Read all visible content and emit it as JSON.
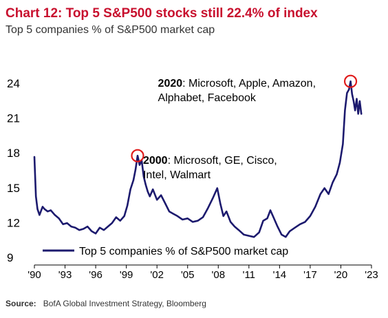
{
  "title": "Chart 12: Top 5 S&P500 stocks still 22.4% of index",
  "subtitle": "Top 5 companies % of S&P500 market cap",
  "source": {
    "label": "Source:",
    "text": "BofA Global Investment Strategy, Bloomberg"
  },
  "colors": {
    "title": "#c8102e",
    "line": "#1c1a6e",
    "highlight_circle": "#e01b1b"
  },
  "chart_data": {
    "type": "line",
    "title": "Chart 12: Top 5 S&P500 stocks still 22.4% of index",
    "subtitle": "Top 5 companies % of S&P500 market cap",
    "xlabel": "",
    "ylabel": "",
    "xlim": [
      1990,
      2023
    ],
    "ylim": [
      9,
      25
    ],
    "xticks": [
      1990,
      1993,
      1996,
      1999,
      2002,
      2005,
      2008,
      2011,
      2014,
      2017,
      2020,
      2023
    ],
    "xtick_labels": [
      "'90",
      "'93",
      "'96",
      "'99",
      "'02",
      "'05",
      "'08",
      "'11",
      "'14",
      "'17",
      "'20",
      "'23"
    ],
    "yticks": [
      9,
      12,
      15,
      18,
      21,
      24
    ],
    "ytick_labels": [
      "9",
      "12",
      "15",
      "18",
      "21",
      "24"
    ],
    "grid": false,
    "legend_position": "bottom",
    "series": [
      {
        "name": "Top 5 companies % of S&P500 market cap",
        "x": [
          1990.0,
          1990.05,
          1990.15,
          1990.3,
          1990.5,
          1990.8,
          1991.0,
          1991.3,
          1991.6,
          1992.0,
          1992.4,
          1992.8,
          1993.2,
          1993.6,
          1994.0,
          1994.4,
          1994.8,
          1995.2,
          1995.6,
          1996.0,
          1996.4,
          1996.8,
          1997.2,
          1997.6,
          1998.0,
          1998.4,
          1998.8,
          1999.1,
          1999.4,
          1999.7,
          1999.9,
          2000.1,
          2000.3,
          2000.5,
          2000.7,
          2000.9,
          2001.1,
          2001.3,
          2001.6,
          2002.0,
          2002.4,
          2002.8,
          2003.2,
          2003.6,
          2004.0,
          2004.5,
          2005.0,
          2005.5,
          2006.0,
          2006.5,
          2007.0,
          2007.5,
          2007.9,
          2008.2,
          2008.5,
          2008.8,
          2009.2,
          2009.6,
          2010.0,
          2010.5,
          2011.0,
          2011.5,
          2012.0,
          2012.4,
          2012.8,
          2013.1,
          2013.4,
          2013.8,
          2014.2,
          2014.6,
          2015.0,
          2015.5,
          2016.0,
          2016.5,
          2017.0,
          2017.5,
          2018.0,
          2018.4,
          2018.8,
          2019.2,
          2019.6,
          2019.9,
          2020.2,
          2020.4,
          2020.6,
          2020.8,
          2020.95,
          2021.1,
          2021.25,
          2021.4,
          2021.55,
          2021.7,
          2021.85,
          2022.0
        ],
        "values": [
          17.6,
          16.5,
          14.2,
          13.1,
          12.6,
          13.3,
          13.1,
          12.9,
          13.0,
          12.6,
          12.3,
          11.8,
          11.9,
          11.6,
          11.5,
          11.3,
          11.4,
          11.6,
          11.2,
          11.0,
          11.5,
          11.3,
          11.6,
          11.9,
          12.4,
          12.1,
          12.5,
          13.4,
          14.8,
          15.6,
          16.5,
          17.7,
          16.9,
          17.3,
          15.9,
          15.2,
          14.6,
          14.2,
          14.8,
          13.9,
          14.3,
          13.6,
          12.9,
          12.7,
          12.5,
          12.2,
          12.3,
          12.0,
          12.1,
          12.4,
          13.2,
          14.1,
          14.9,
          13.6,
          12.5,
          12.9,
          12.0,
          11.6,
          11.3,
          10.9,
          10.8,
          10.7,
          11.1,
          12.1,
          12.3,
          13.0,
          12.4,
          11.6,
          10.9,
          10.7,
          11.2,
          11.5,
          11.8,
          12.0,
          12.5,
          13.3,
          14.4,
          14.9,
          14.4,
          15.4,
          16.1,
          17.1,
          18.7,
          21.6,
          23.1,
          23.4,
          24.1,
          23.0,
          22.4,
          21.6,
          22.6,
          21.3,
          22.4,
          21.3
        ]
      }
    ],
    "annotations": [
      {
        "label_bold": "2000",
        "label_rest": ": Microsoft,  GE, Cisco,",
        "line2": "Intel,  Walmart",
        "x": 2000.1,
        "y": 17.7
      },
      {
        "label_bold": "2020",
        "label_rest": ": Microsoft,  Apple, Amazon,",
        "line2": "Alphabet,  Facebook",
        "x": 2020.95,
        "y": 24.1
      }
    ]
  }
}
